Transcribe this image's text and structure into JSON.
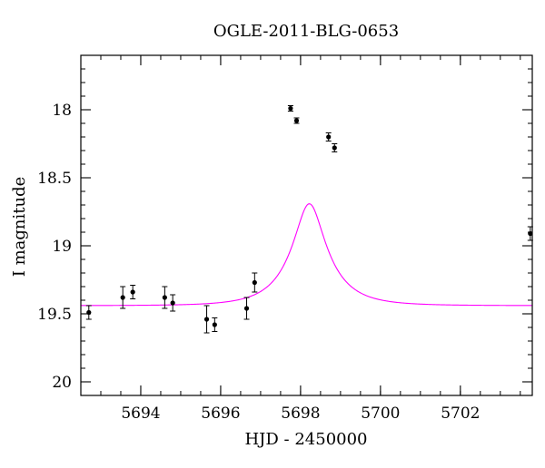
{
  "chart_data": {
    "type": "scatter",
    "title": "OGLE-2011-BLG-0653",
    "xlabel": "HJD - 2450000",
    "ylabel": "I magnitude",
    "xlim": [
      5692.5,
      5703.8
    ],
    "ylim": [
      20.1,
      17.6
    ],
    "y_inverted": true,
    "x_ticks": [
      5694,
      5696,
      5698,
      5700,
      5702
    ],
    "x_tick_labels": [
      "5694",
      "5696",
      "5698",
      "5700",
      "5702"
    ],
    "y_ticks": [
      18,
      18.5,
      19,
      19.5,
      20
    ],
    "y_tick_labels": [
      "18",
      "18.5",
      "19",
      "19.5",
      "20"
    ],
    "x_minor_step": 0.5,
    "y_minor_step": 0.1,
    "grid": false,
    "series": [
      {
        "kind": "points_with_errorbars",
        "color": "#000000",
        "points": [
          {
            "x": 5692.7,
            "y": 19.49,
            "err": 0.05
          },
          {
            "x": 5693.55,
            "y": 19.38,
            "err": 0.08
          },
          {
            "x": 5693.8,
            "y": 19.34,
            "err": 0.05
          },
          {
            "x": 5694.6,
            "y": 19.38,
            "err": 0.08
          },
          {
            "x": 5694.8,
            "y": 19.42,
            "err": 0.06
          },
          {
            "x": 5695.65,
            "y": 19.54,
            "err": 0.1
          },
          {
            "x": 5695.85,
            "y": 19.58,
            "err": 0.05
          },
          {
            "x": 5696.65,
            "y": 19.46,
            "err": 0.08
          },
          {
            "x": 5696.85,
            "y": 19.27,
            "err": 0.07
          },
          {
            "x": 5697.75,
            "y": 17.99,
            "err": 0.02
          },
          {
            "x": 5697.9,
            "y": 18.08,
            "err": 0.02
          },
          {
            "x": 5698.7,
            "y": 18.2,
            "err": 0.03
          },
          {
            "x": 5698.85,
            "y": 18.28,
            "err": 0.03
          },
          {
            "x": 5703.75,
            "y": 18.91,
            "err": 0.05
          }
        ]
      },
      {
        "kind": "model_curve",
        "color": "#ff00ff",
        "model": {
          "baseline_mag": 19.44,
          "t0": 5698.22,
          "u0": 0.35,
          "tE": 1.0,
          "fs": 0.5
        }
      }
    ]
  }
}
